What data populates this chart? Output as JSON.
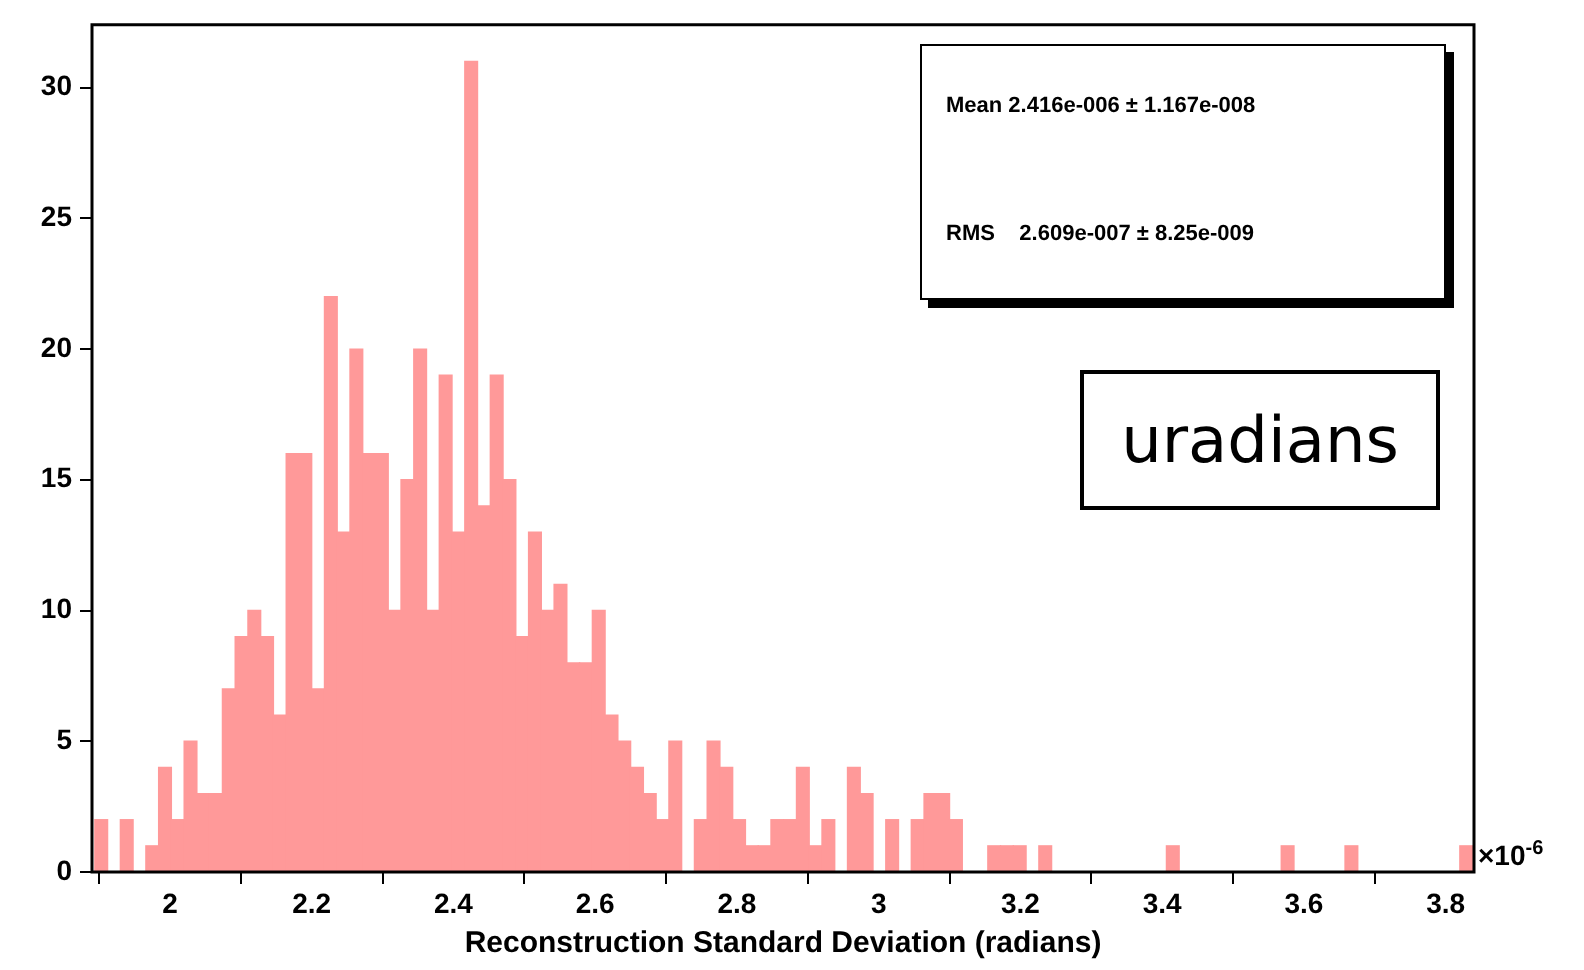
{
  "chart_data": {
    "type": "histogram",
    "xlabel": "Reconstruction Standard Deviation (radians)",
    "bins": [
      1.894,
      1.912,
      1.93,
      1.948,
      1.966,
      1.984,
      2.002,
      2.02,
      2.038,
      2.056,
      2.074,
      2.092,
      2.11,
      2.128,
      2.146,
      2.164,
      2.182,
      2.2,
      2.218,
      2.236,
      2.254,
      2.272,
      2.29,
      2.308,
      2.326,
      2.344,
      2.362,
      2.38,
      2.398,
      2.416,
      2.434,
      2.452,
      2.47,
      2.488,
      2.506,
      2.524,
      2.542,
      2.56,
      2.578,
      2.596,
      2.614,
      2.632,
      2.65,
      2.668,
      2.686,
      2.704,
      2.722,
      2.74,
      2.758,
      2.776,
      2.794,
      2.812,
      2.83,
      2.848,
      2.866,
      2.884,
      2.902,
      2.92,
      2.938,
      2.956,
      2.974,
      2.992,
      3.01,
      3.028,
      3.046,
      3.064,
      3.082,
      3.1,
      3.118,
      3.136,
      3.154,
      3.172,
      3.19,
      3.208,
      3.226,
      3.244,
      3.262,
      3.28,
      3.298,
      3.316,
      3.334,
      3.352,
      3.37,
      3.388,
      3.406,
      3.424,
      3.442,
      3.46,
      3.478,
      3.496,
      3.514,
      3.532,
      3.55,
      3.568,
      3.586,
      3.604,
      3.622,
      3.64,
      3.658,
      3.676,
      3.694,
      3.712,
      3.73,
      3.748,
      3.766,
      3.784,
      3.802,
      3.82,
      3.838
    ],
    "values": [
      2,
      0,
      2,
      0,
      1,
      4,
      2,
      5,
      3,
      3,
      7,
      9,
      10,
      9,
      6,
      16,
      16,
      7,
      22,
      13,
      20,
      16,
      16,
      10,
      15,
      20,
      10,
      19,
      13,
      31,
      14,
      19,
      15,
      9,
      13,
      10,
      11,
      8,
      8,
      10,
      6,
      5,
      4,
      3,
      2,
      5,
      0,
      2,
      5,
      4,
      2,
      1,
      1,
      2,
      2,
      4,
      1,
      2,
      0,
      4,
      3,
      0,
      2,
      0,
      2,
      3,
      3,
      2,
      0,
      0,
      1,
      1,
      1,
      0,
      1,
      0,
      0,
      0,
      0,
      0,
      0,
      0,
      0,
      0,
      1,
      0,
      0,
      0,
      0,
      0,
      0,
      0,
      0,
      1,
      0,
      0,
      0,
      0,
      1,
      0,
      0,
      0,
      0,
      0,
      0,
      0,
      0,
      1
    ],
    "color": "#ff9999",
    "xlim": [
      1.89,
      3.84
    ],
    "xticks": [
      2,
      2.2,
      2.4,
      2.6,
      2.8,
      3,
      3.2,
      3.4,
      3.6,
      3.8
    ],
    "ylim": [
      0,
      32.4
    ],
    "yticks": [
      0,
      5,
      10,
      15,
      20,
      25,
      30
    ],
    "grid": false,
    "legend": false,
    "annotations": [
      "Mean 2.416e-006 ± 1.167e-008",
      "RMS    2.609e-007 ± 8.25e-009",
      "×10$^{-6}$",
      "uradians"
    ]
  }
}
